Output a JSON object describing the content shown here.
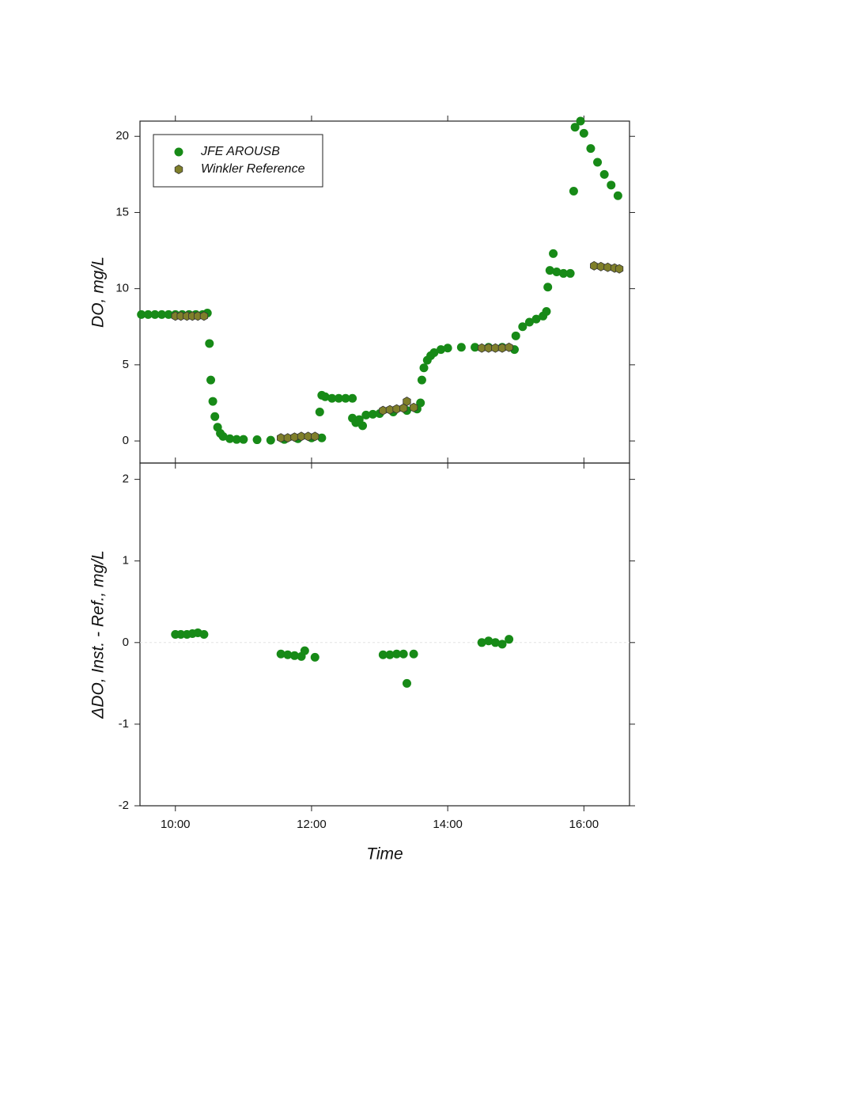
{
  "chart_data": [
    {
      "type": "scatter",
      "ylabel": "DO, mg/L",
      "xlim": [
        9.48,
        16.67
      ],
      "ylim": [
        -1.45,
        21
      ],
      "yticks": [
        0,
        5,
        10,
        15,
        20
      ],
      "legend": "upper left",
      "series": [
        {
          "name": "JFE AROUSB",
          "color": "#178a17",
          "marker": "circle",
          "x": [
            9.5,
            9.6,
            9.7,
            9.8,
            9.9,
            10.0,
            10.1,
            10.2,
            10.3,
            10.4,
            10.47,
            10.5,
            10.52,
            10.55,
            10.58,
            10.62,
            10.66,
            10.7,
            10.8,
            10.9,
            11.0,
            11.2,
            11.4,
            11.6,
            11.8,
            12.0,
            12.15,
            12.12,
            12.15,
            12.2,
            12.3,
            12.4,
            12.5,
            12.6,
            12.6,
            12.65,
            12.7,
            12.75,
            12.8,
            12.9,
            13.0,
            13.2,
            13.4,
            13.55,
            13.6,
            13.62,
            13.65,
            13.7,
            13.75,
            13.8,
            13.9,
            14.0,
            14.2,
            14.4,
            14.6,
            14.8,
            14.98,
            15.0,
            15.1,
            15.2,
            15.3,
            15.4,
            15.45,
            15.47,
            15.5,
            15.55,
            15.6,
            15.7,
            15.8,
            15.85,
            15.87,
            15.95,
            16.0,
            16.1,
            16.2,
            16.3,
            16.4,
            16.5
          ],
          "values": [
            8.3,
            8.3,
            8.3,
            8.3,
            8.3,
            8.3,
            8.3,
            8.3,
            8.3,
            8.3,
            8.4,
            6.4,
            4.0,
            2.6,
            1.6,
            0.9,
            0.5,
            0.3,
            0.15,
            0.1,
            0.1,
            0.08,
            0.05,
            0.1,
            0.15,
            0.2,
            0.2,
            1.9,
            3.0,
            2.9,
            2.8,
            2.8,
            2.8,
            2.8,
            1.5,
            1.2,
            1.4,
            1.0,
            1.7,
            1.75,
            1.8,
            1.9,
            2.0,
            2.1,
            2.5,
            4.0,
            4.8,
            5.3,
            5.6,
            5.8,
            6.0,
            6.1,
            6.15,
            6.15,
            6.15,
            6.15,
            6.0,
            6.9,
            7.5,
            7.8,
            8.0,
            8.2,
            8.5,
            10.1,
            11.2,
            12.3,
            11.1,
            11.0,
            11.0,
            16.4,
            20.6,
            21.0,
            20.2,
            19.2,
            18.3,
            17.5,
            16.8,
            16.1
          ]
        },
        {
          "name": "Winkler Reference",
          "color": "#7f7f2a",
          "marker": "hexagon",
          "x": [
            10.0,
            10.08,
            10.17,
            10.25,
            10.33,
            10.42,
            11.55,
            11.65,
            11.75,
            11.85,
            11.95,
            12.05,
            13.05,
            13.15,
            13.25,
            13.35,
            13.4,
            13.5,
            14.5,
            14.6,
            14.7,
            14.8,
            14.9,
            16.15,
            16.25,
            16.35,
            16.45,
            16.52
          ],
          "values": [
            8.2,
            8.2,
            8.2,
            8.2,
            8.2,
            8.2,
            0.2,
            0.2,
            0.25,
            0.3,
            0.3,
            0.3,
            2.0,
            2.05,
            2.1,
            2.15,
            2.6,
            2.2,
            6.1,
            6.1,
            6.1,
            6.1,
            6.15,
            11.5,
            11.45,
            11.4,
            11.35,
            11.3
          ]
        }
      ]
    },
    {
      "type": "scatter",
      "xlabel": "Time",
      "ylabel": "ΔDO, Inst. - Ref., mg/L",
      "xlim": [
        9.48,
        16.67
      ],
      "ylim": [
        -2,
        2.2
      ],
      "yticks": [
        -2,
        -1,
        0,
        1,
        2
      ],
      "xticks": [
        {
          "value": 10,
          "label": "10:00"
        },
        {
          "value": 12,
          "label": "12:00"
        },
        {
          "value": 14,
          "label": "14:00"
        },
        {
          "value": 16,
          "label": "16:00"
        }
      ],
      "series": [
        {
          "color": "#178a17",
          "marker": "circle",
          "x": [
            10.0,
            10.08,
            10.17,
            10.25,
            10.33,
            10.42,
            11.55,
            11.65,
            11.75,
            11.85,
            11.9,
            12.05,
            13.05,
            13.15,
            13.25,
            13.35,
            13.4,
            13.5,
            14.5,
            14.6,
            14.7,
            14.8,
            14.9
          ],
          "values": [
            0.1,
            0.1,
            0.1,
            0.11,
            0.12,
            0.1,
            -0.14,
            -0.15,
            -0.16,
            -0.17,
            -0.1,
            -0.18,
            -0.15,
            -0.15,
            -0.14,
            -0.14,
            -0.5,
            -0.14,
            0.0,
            0.02,
            0.0,
            -0.02,
            0.04
          ]
        }
      ]
    }
  ]
}
